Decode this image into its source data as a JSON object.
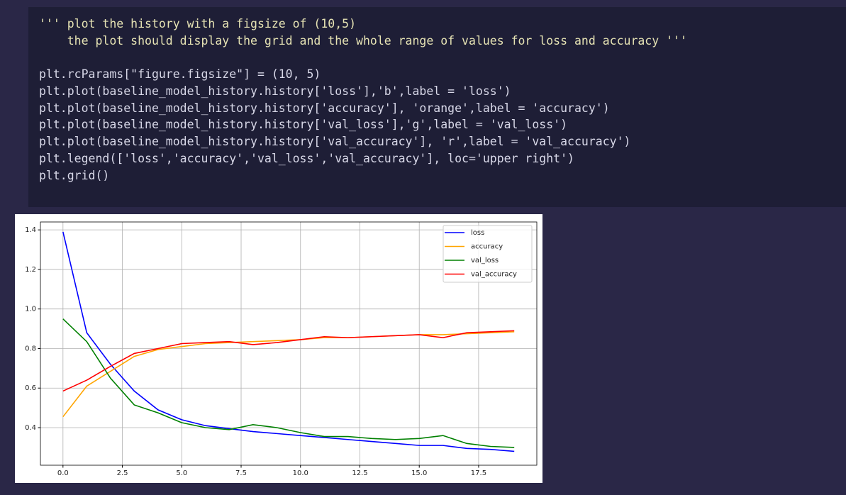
{
  "code": {
    "docstring": [
      "''' plot the history with a figsize of (10,5)",
      "    the plot should display the grid and the whole range of values for loss and accuracy '''"
    ],
    "lines": [
      "plt.rcParams[\"figure.figsize\"] = (10, 5)",
      "plt.plot(baseline_model_history.history['loss'],'b',label = 'loss')",
      "plt.plot(baseline_model_history.history['accuracy'], 'orange',label = 'accuracy')",
      "plt.plot(baseline_model_history.history['val_loss'],'g',label = 'val_loss')",
      "plt.plot(baseline_model_history.history['val_accuracy'], 'r',label = 'val_accuracy')",
      "plt.legend(['loss','accuracy','val_loss','val_accuracy'], loc='upper right')",
      "plt.grid()"
    ]
  },
  "chart_data": {
    "type": "line",
    "x": [
      0,
      1,
      2,
      3,
      4,
      5,
      6,
      7,
      8,
      9,
      10,
      11,
      12,
      13,
      14,
      15,
      16,
      17,
      18,
      19
    ],
    "series": [
      {
        "name": "loss",
        "color": "#0000ff",
        "values": [
          1.39,
          0.88,
          0.72,
          0.585,
          0.49,
          0.44,
          0.41,
          0.395,
          0.38,
          0.37,
          0.36,
          0.35,
          0.34,
          0.33,
          0.32,
          0.31,
          0.31,
          0.295,
          0.29,
          0.28
        ]
      },
      {
        "name": "accuracy",
        "color": "#ffa500",
        "values": [
          0.455,
          0.61,
          0.685,
          0.76,
          0.795,
          0.81,
          0.825,
          0.83,
          0.835,
          0.84,
          0.845,
          0.855,
          0.855,
          0.86,
          0.865,
          0.87,
          0.87,
          0.875,
          0.88,
          0.885
        ]
      },
      {
        "name": "val_loss",
        "color": "#008000",
        "values": [
          0.95,
          0.835,
          0.65,
          0.515,
          0.475,
          0.425,
          0.4,
          0.39,
          0.415,
          0.4,
          0.375,
          0.355,
          0.355,
          0.345,
          0.34,
          0.345,
          0.36,
          0.32,
          0.305,
          0.3
        ]
      },
      {
        "name": "val_accuracy",
        "color": "#ff0000",
        "values": [
          0.585,
          0.64,
          0.71,
          0.775,
          0.8,
          0.825,
          0.83,
          0.835,
          0.82,
          0.83,
          0.845,
          0.86,
          0.855,
          0.86,
          0.865,
          0.87,
          0.855,
          0.88,
          0.885,
          0.89
        ]
      }
    ],
    "xlim": [
      -0.95,
      19.95
    ],
    "xticks": [
      {
        "value": 0,
        "label": "0.0"
      },
      2.5,
      {
        "value": 5,
        "label": "5.0"
      },
      7.5,
      {
        "value": 10,
        "label": "10.0"
      },
      12.5,
      {
        "value": 15,
        "label": "15.0"
      },
      17.5
    ],
    "ylim": [
      0.21,
      1.44
    ],
    "yticks": [
      0.4,
      0.6,
      0.8,
      {
        "value": 1,
        "label": "1.0"
      },
      1.2,
      1.4
    ],
    "grid": true,
    "legend": "upper-right"
  }
}
